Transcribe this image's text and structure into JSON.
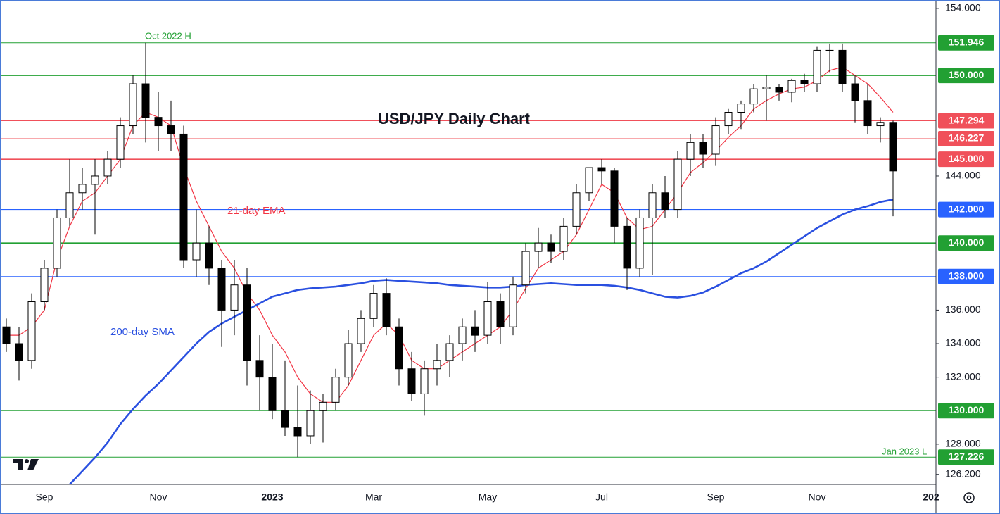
{
  "chart_data": {
    "type": "candlestick",
    "title": "USD/JPY Daily Chart",
    "categories": [
      null,
      null,
      null,
      "Sep",
      null,
      null,
      null,
      null,
      null,
      null,
      null,
      null,
      "Nov",
      null,
      null,
      null,
      null,
      null,
      null,
      null,
      null,
      "2023",
      null,
      null,
      null,
      null,
      null,
      null,
      null,
      "Mar",
      null,
      null,
      null,
      null,
      null,
      null,
      null,
      null,
      "May",
      null,
      null,
      null,
      null,
      null,
      null,
      null,
      null,
      "Jul",
      null,
      null,
      null,
      null,
      null,
      null,
      null,
      null,
      "Sep",
      null,
      null,
      null,
      null,
      null,
      null,
      null,
      "Nov",
      null,
      null,
      null,
      null,
      null,
      null,
      null,
      null,
      "202"
    ],
    "open": [
      135,
      134,
      133,
      136.5,
      138.5,
      141.5,
      143,
      143.5,
      144,
      145,
      147,
      149.5,
      147.5,
      147,
      146.5,
      139,
      140,
      138.5,
      136,
      137.5,
      133,
      132,
      130,
      129,
      128.5,
      130,
      130.5,
      132,
      134,
      135.5,
      137,
      135,
      132.5,
      131,
      132.5,
      133,
      134,
      135,
      134.5,
      136.5,
      135,
      137.5,
      139.5,
      140,
      139.5,
      141,
      143,
      144.5,
      144.3,
      141,
      138.5,
      141.5,
      143,
      142,
      145,
      146,
      145.3,
      147,
      147.8,
      148.3,
      149.2,
      149.3,
      149,
      149.7,
      149.5,
      151.5,
      151.5,
      149.5,
      148.5,
      147,
      147.2,
      null,
      null,
      null
    ],
    "high": [
      135.5,
      135,
      137,
      139,
      142,
      145,
      144.5,
      145,
      145.5,
      147.5,
      150,
      151.946,
      149,
      148.5,
      147,
      142,
      141,
      139,
      139,
      138.5,
      134.5,
      134,
      133,
      131.5,
      131.2,
      131,
      132.5,
      134.8,
      136,
      137.5,
      137.9,
      135.5,
      133.5,
      133,
      134,
      134.5,
      135.5,
      136,
      137.7,
      137,
      138,
      140,
      140.9,
      140.5,
      141.5,
      143.5,
      144.5,
      145,
      144.5,
      141.5,
      142,
      143.5,
      144,
      145.5,
      146.5,
      146.5,
      147.5,
      148,
      148.5,
      149.5,
      150,
      149.5,
      149.8,
      150.1,
      151.7,
      151.9,
      151.9,
      150,
      149.5,
      147.5,
      147.3,
      null,
      null,
      null
    ],
    "low": [
      133.5,
      131.8,
      132.5,
      136,
      138,
      141,
      142,
      140.5,
      143.5,
      144.5,
      146.5,
      146,
      145.5,
      145.5,
      138.5,
      138,
      137.5,
      133.8,
      134.5,
      131.5,
      130,
      129.5,
      128.5,
      127.226,
      128,
      128.1,
      130,
      131.5,
      133.5,
      135,
      134.5,
      131.5,
      130.6,
      129.7,
      131.5,
      132,
      133,
      133.5,
      134,
      134,
      134.5,
      137,
      138.5,
      138.8,
      139,
      140.5,
      142.5,
      143.5,
      140,
      137.2,
      138,
      138.1,
      141.5,
      141.5,
      144,
      144.5,
      144.6,
      146.5,
      146.8,
      147.8,
      147.3,
      148.5,
      148.4,
      149,
      149,
      150.2,
      149,
      147.2,
      146.5,
      146,
      141.6,
      null,
      null,
      null
    ],
    "close": [
      134,
      133,
      136.5,
      138.5,
      141.5,
      143,
      143.5,
      144,
      145,
      147,
      149.5,
      147.5,
      147,
      146.5,
      139,
      140,
      138.5,
      136,
      137.5,
      133,
      132,
      130,
      129,
      128.5,
      130,
      130.5,
      132,
      134,
      135.5,
      137,
      135,
      132.5,
      131,
      132.5,
      133,
      134,
      135,
      134.5,
      136.5,
      135,
      137.5,
      139.5,
      140,
      139.5,
      141,
      143,
      144.5,
      144.3,
      141,
      138.5,
      141.5,
      143,
      142,
      145,
      146,
      145.3,
      147,
      147.8,
      148.3,
      149.2,
      149.3,
      149,
      149.7,
      149.5,
      151.5,
      151.5,
      149.5,
      148.5,
      147,
      147.2,
      144.3,
      null,
      null,
      null
    ],
    "up_color": "#ffffff",
    "down_color": "#000000",
    "lines": [
      {
        "name": "21-day EMA",
        "color": "#f23645",
        "width": 1.2,
        "values": [
          134.5,
          134.5,
          135,
          136,
          139,
          141,
          142.5,
          143,
          144,
          145,
          147,
          147.8,
          147.5,
          147,
          144.5,
          142.5,
          141,
          139.5,
          138.5,
          137,
          136,
          134.5,
          133.5,
          132,
          131,
          130.5,
          130.5,
          131.5,
          133,
          134.5,
          135.2,
          134.5,
          133,
          132.5,
          132.5,
          133,
          133.5,
          134,
          134.5,
          135,
          136,
          137.3,
          138.5,
          139,
          139.5,
          140.5,
          142,
          143.5,
          143,
          141.5,
          140.8,
          141,
          142,
          143,
          144.2,
          144.8,
          145.5,
          146.3,
          147,
          148,
          148.5,
          148.9,
          149.2,
          149.3,
          149.7,
          150.3,
          150.5,
          150,
          149.5,
          148.7,
          147.8,
          null,
          null,
          null
        ]
      },
      {
        "name": "200-day SMA",
        "color": "#2a50e0",
        "width": 2.6,
        "values": [
          null,
          null,
          null,
          null,
          null,
          125.6,
          126.4,
          127.2,
          128.1,
          129.2,
          130.1,
          130.9,
          131.6,
          132.4,
          133.2,
          134,
          134.7,
          135.2,
          135.6,
          136,
          136.4,
          136.8,
          137,
          137.2,
          137.3,
          137.35,
          137.4,
          137.5,
          137.6,
          137.75,
          137.8,
          137.75,
          137.7,
          137.65,
          137.6,
          137.5,
          137.45,
          137.4,
          137.35,
          137.35,
          137.4,
          137.5,
          137.55,
          137.6,
          137.55,
          137.5,
          137.5,
          137.5,
          137.45,
          137.35,
          137.2,
          137,
          136.8,
          136.75,
          136.85,
          137.05,
          137.4,
          137.8,
          138.2,
          138.5,
          138.9,
          139.4,
          139.9,
          140.4,
          140.9,
          141.3,
          141.7,
          142,
          142.2,
          142.45,
          142.6,
          null,
          null,
          null
        ]
      }
    ],
    "levels": [
      {
        "value": 151.946,
        "label": "151.946",
        "color": "#22a033",
        "width": 1
      },
      {
        "value": 150,
        "label": "150.000",
        "color": "#22a033",
        "width": 1.6
      },
      {
        "value": 147.294,
        "label": "147.294",
        "color": "#f0505a",
        "width": 1
      },
      {
        "value": 146.227,
        "label": "146.227",
        "color": "#f0505a",
        "width": 1
      },
      {
        "value": 145,
        "label": "145.000",
        "color": "#f0505a",
        "width": 1.6
      },
      {
        "value": 142,
        "label": "142.000",
        "color": "#2962ff",
        "width": 1.2
      },
      {
        "value": 140,
        "label": "140.000",
        "color": "#22a033",
        "width": 1.6
      },
      {
        "value": 138,
        "label": "138.000",
        "color": "#2962ff",
        "width": 1.2
      },
      {
        "value": 130,
        "label": "130.000",
        "color": "#22a033",
        "width": 1
      },
      {
        "value": 127.226,
        "label": "127.226",
        "color": "#22a033",
        "width": 1
      }
    ],
    "annotations": [
      {
        "text": "Oct 2022 H",
        "color": "#22a033"
      },
      {
        "text": "Jan 2023 L",
        "color": "#22a033"
      }
    ],
    "ylim": [
      125.6,
      154.5
    ],
    "yticks": [
      {
        "value": 154,
        "label": "154.000"
      },
      {
        "value": 144,
        "label": "144.000"
      },
      {
        "value": 136,
        "label": "136.000"
      },
      {
        "value": 134,
        "label": "134.000"
      },
      {
        "value": 132,
        "label": "132.000"
      },
      {
        "value": 128,
        "label": "128.000"
      },
      {
        "value": 126.2,
        "label": "126.200"
      }
    ]
  }
}
